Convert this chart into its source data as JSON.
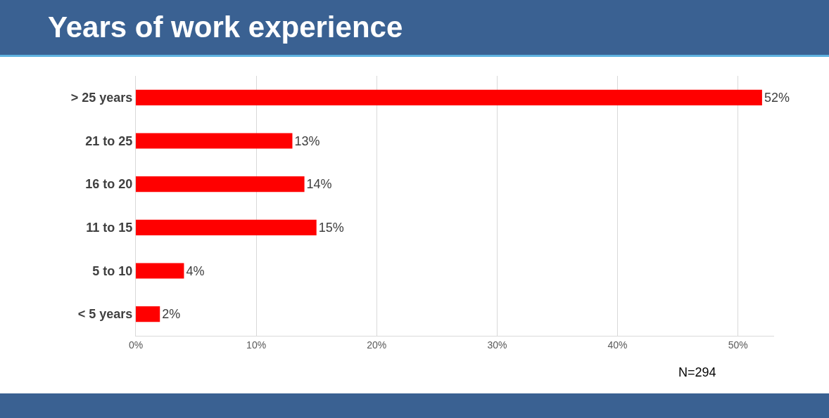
{
  "chart_data": {
    "type": "bar",
    "orientation": "horizontal",
    "title": "Years of work experience",
    "categories": [
      "> 25 years",
      "21 to 25",
      "16 to 20",
      "11 to 15",
      "5 to 10",
      "< 5 years"
    ],
    "values": [
      52,
      13,
      14,
      15,
      4,
      2
    ],
    "value_labels": [
      "52%",
      "13%",
      "14%",
      "15%",
      "4%",
      "2%"
    ],
    "color": "#ff0000",
    "xlim": [
      0,
      53
    ],
    "xticks": [
      {
        "value": 0,
        "label": "0%"
      },
      {
        "value": 10,
        "label": "10%"
      },
      {
        "value": 20,
        "label": "20%"
      },
      {
        "value": 30,
        "label": "30%"
      },
      {
        "value": 40,
        "label": "40%"
      },
      {
        "value": 50,
        "label": "50%"
      }
    ],
    "grid": "x",
    "annotations": [
      "N=294"
    ]
  }
}
